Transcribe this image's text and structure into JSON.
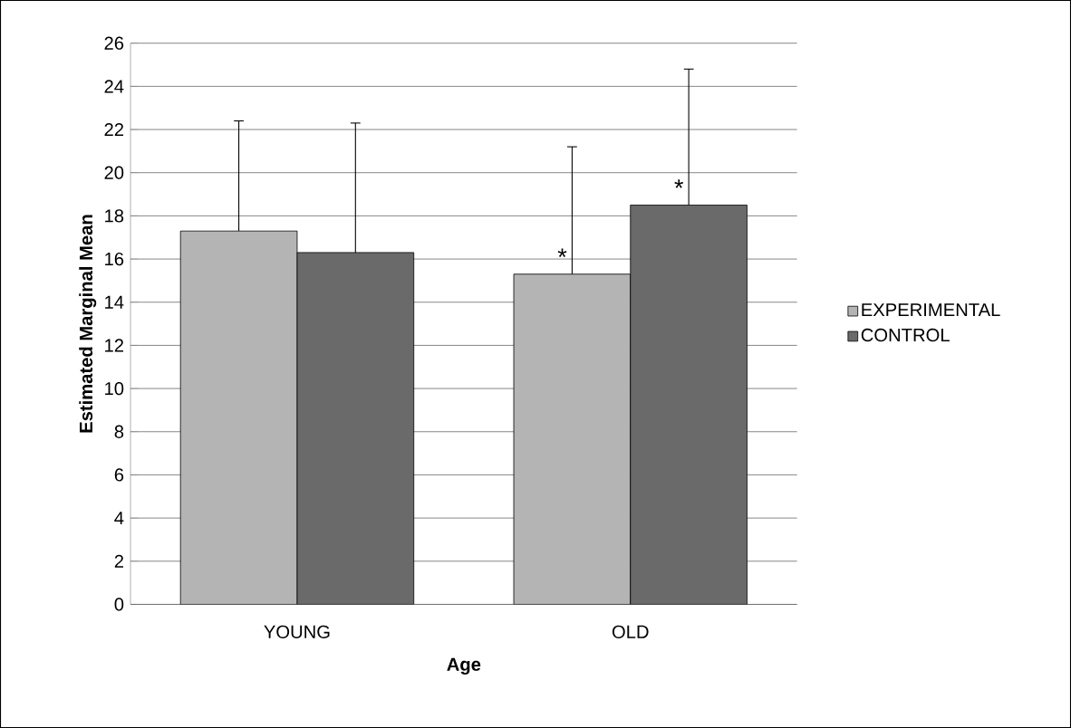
{
  "chart_data": {
    "type": "bar",
    "xlabel": "Age",
    "ylabel": "Estimated Marginal Mean",
    "categories": [
      "YOUNG",
      "OLD"
    ],
    "series": [
      {
        "name": "EXPERIMENTAL",
        "color": "#b4b4b4",
        "values": [
          17.3,
          15.3
        ],
        "errors": [
          [
            17.3,
            22.4
          ],
          [
            15.3,
            21.2
          ]
        ]
      },
      {
        "name": "CONTROL",
        "color": "#6a6a6a",
        "values": [
          16.3,
          18.5
        ],
        "errors": [
          [
            16.3,
            22.3
          ],
          [
            18.5,
            24.8
          ]
        ]
      }
    ],
    "ylim": [
      0,
      26
    ],
    "yticks": [
      0,
      2,
      4,
      6,
      8,
      10,
      12,
      14,
      16,
      18,
      20,
      22,
      24,
      26
    ],
    "grid": "y",
    "legend": "right",
    "annotations": [
      {
        "text": "*",
        "x": "OLD",
        "y": 15.3
      },
      {
        "text": "*",
        "x": "OLD",
        "y": 18.5
      }
    ]
  }
}
